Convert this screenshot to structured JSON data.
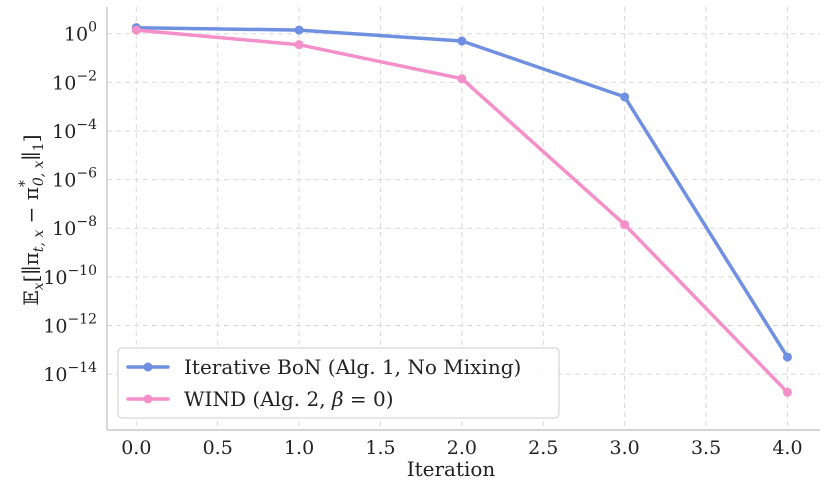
{
  "chart_data": {
    "type": "line",
    "title": "",
    "xlabel": "Iteration",
    "ylabel": "E_x[||π_{t,x} − π*_{0,x}||_1]",
    "ylabel_parts": {
      "base": "𝔼",
      "sub_x": "x",
      "open": "[∥π",
      "sub_tx": "t, x",
      "minus": " − π",
      "sup_star": "*",
      "sub_0x": "0, x",
      "close": "∥",
      "sub_1": "1",
      "end": "]"
    },
    "yscale": "log",
    "xlim": [
      -0.18,
      4.2
    ],
    "ylim_log10": [
      -16.3,
      1.1
    ],
    "grid": true,
    "legend_position": "lower-left",
    "x_ticks": [
      0.0,
      0.5,
      1.0,
      1.5,
      2.0,
      2.5,
      3.0,
      3.5,
      4.0
    ],
    "x_tick_labels": [
      "0.0",
      "0.5",
      "1.0",
      "1.5",
      "2.0",
      "2.5",
      "3.0",
      "3.5",
      "4.0"
    ],
    "y_ticks_exponent": [
      0,
      -2,
      -4,
      -6,
      -8,
      -10,
      -12,
      -14
    ],
    "y_tick_base": "10",
    "y_tick_labels_exp": [
      "0",
      "−2",
      "−4",
      "−6",
      "−8",
      "−10",
      "−12",
      "−14"
    ],
    "x": [
      0,
      1,
      2,
      3,
      4
    ],
    "series": [
      {
        "name": "Iterative BoN (Alg. 1, No Mixing)",
        "color": "#6f8fe0",
        "log10_values": [
          0.25,
          0.15,
          -0.3,
          -2.6,
          -13.3
        ]
      },
      {
        "name": "WIND (Alg. 2, β = 0)",
        "color": "#f48fc9",
        "log10_values": [
          0.15,
          -0.45,
          -1.85,
          -7.85,
          -14.75
        ]
      }
    ],
    "legend_labels": {
      "bon": "Iterative BoN (Alg. 1, No Mixing)",
      "wind_prefix": "WIND (Alg. 2, ",
      "wind_beta": "β",
      "wind_suffix": " = 0)"
    }
  }
}
